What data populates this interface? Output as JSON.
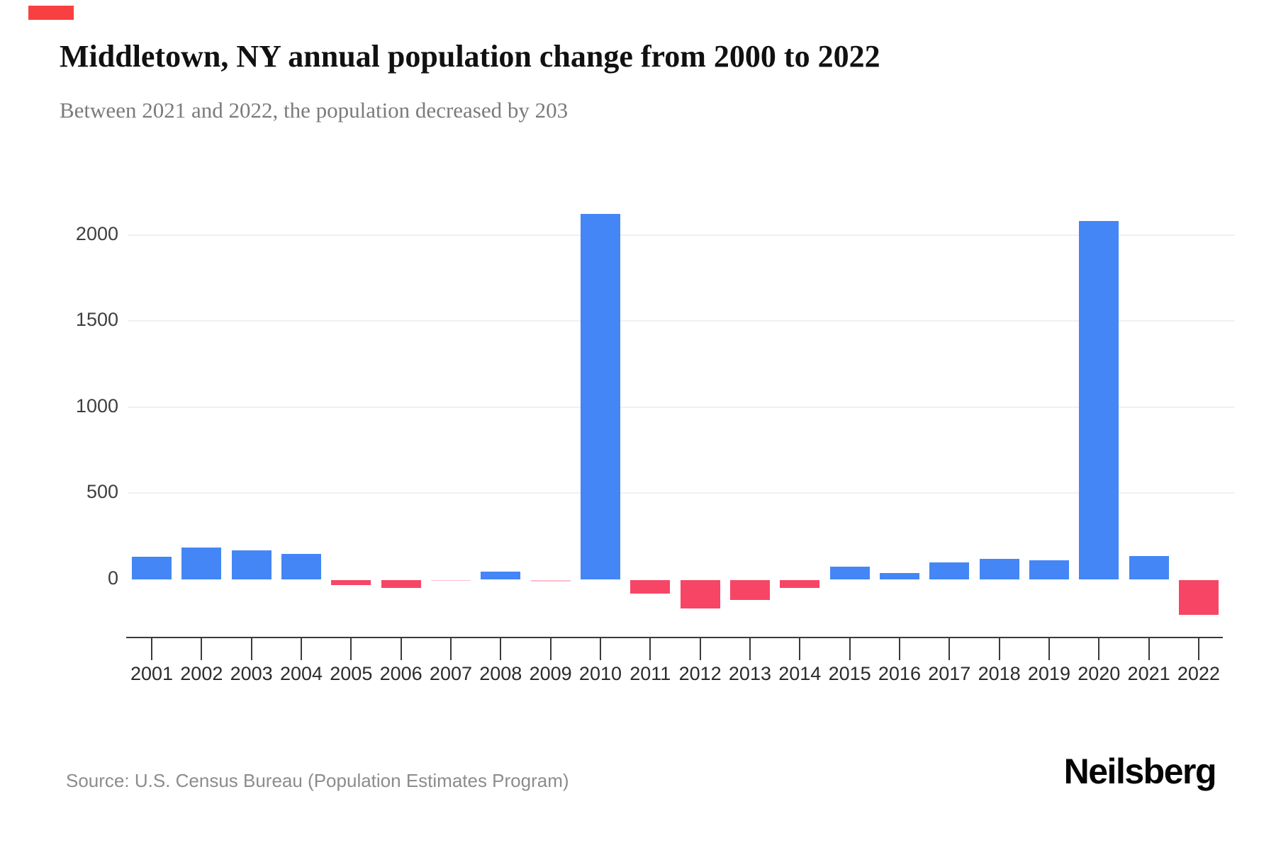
{
  "brand": {
    "accent_color": "#f94040",
    "logo_text": "Neilsberg"
  },
  "header": {
    "title": "Middletown, NY annual population change from 2000 to 2022",
    "subtitle": "Between 2021 and 2022, the population decreased by 203"
  },
  "footer": {
    "source": "Source: U.S. Census Bureau (Population Estimates Program)"
  },
  "chart_data": {
    "type": "bar",
    "title": "Middletown, NY annual population change from 2000 to 2022",
    "subtitle": "Between 2021 and 2022, the population decreased by 203",
    "categories": [
      "2001",
      "2002",
      "2003",
      "2004",
      "2005",
      "2006",
      "2007",
      "2008",
      "2009",
      "2010",
      "2011",
      "2012",
      "2013",
      "2014",
      "2015",
      "2016",
      "2017",
      "2018",
      "2019",
      "2020",
      "2021",
      "2022"
    ],
    "values": [
      130,
      185,
      170,
      150,
      -30,
      -45,
      -3,
      45,
      -8,
      2120,
      -80,
      -165,
      -115,
      -45,
      75,
      35,
      100,
      120,
      110,
      2080,
      135,
      -203
    ],
    "positive_color": "#4486f5",
    "negative_color": "#f74566",
    "ylabel": "",
    "xlabel": "",
    "y_ticks": [
      0,
      500,
      1000,
      1500,
      2000
    ],
    "ylim": [
      -260,
      2250
    ],
    "grid": "horizontal-light",
    "legend": "none",
    "annotations": [],
    "source": "Source: U.S. Census Bureau (Population Estimates Program)"
  }
}
